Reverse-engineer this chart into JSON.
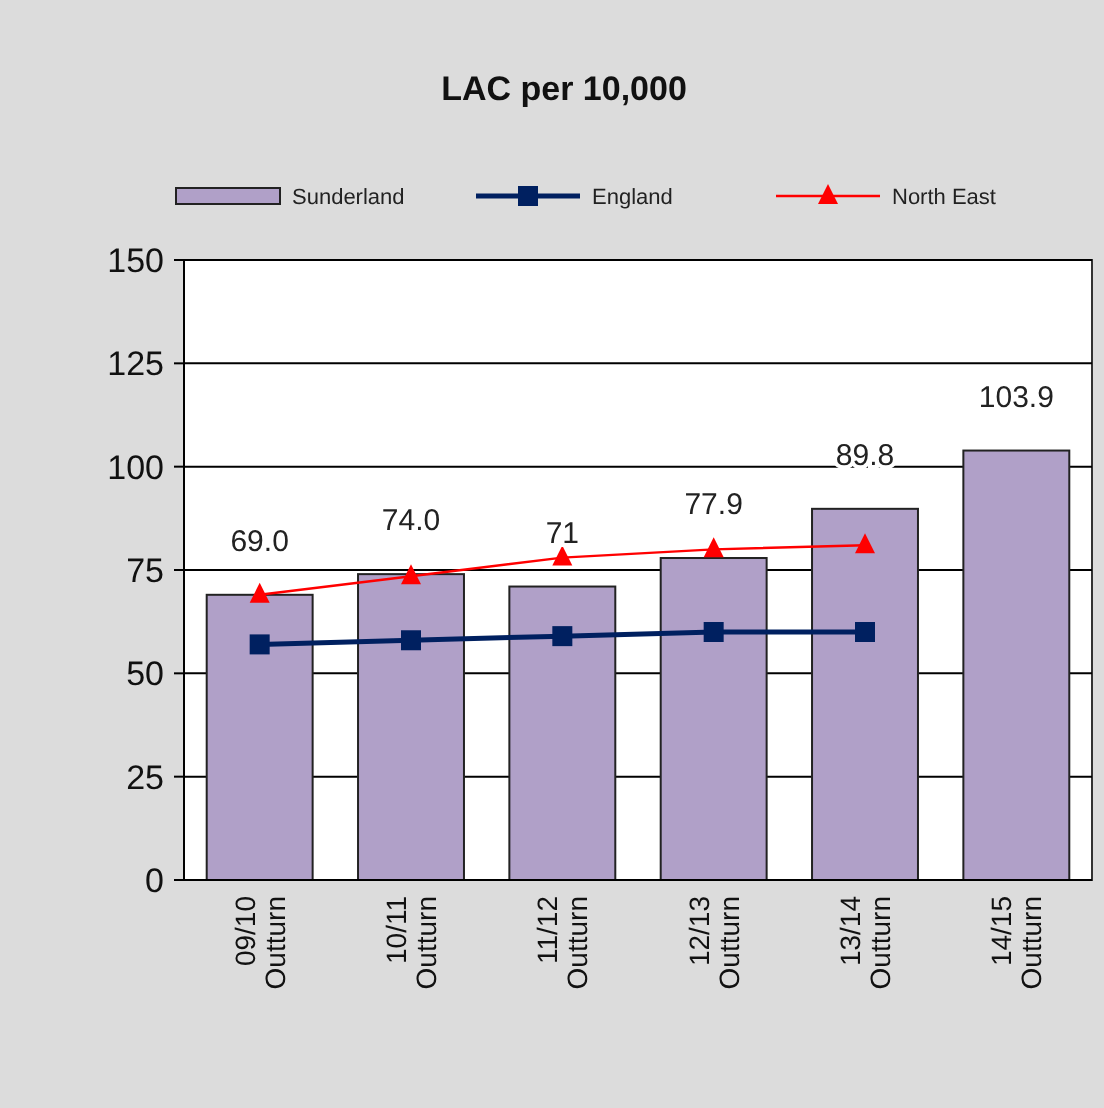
{
  "chart_data": {
    "type": "bar",
    "title": "LAC per 10,000",
    "categories": [
      "09/10 Outturn",
      "10/11 Outturn",
      "11/12 Outturn",
      "12/13 Outturn",
      "13/14 Outturn",
      "14/15 Outturn"
    ],
    "series": [
      {
        "name": "Sunderland",
        "color": "#b0a0c8",
        "values": [
          69.0,
          74.0,
          71,
          77.9,
          89.8,
          103.9
        ],
        "value_labels": [
          "69.0",
          "74.0",
          "71",
          "77.9",
          "89.8",
          "103.9"
        ]
      },
      {
        "name": "England",
        "type": "line",
        "color": "#002060",
        "marker": "square",
        "values": [
          57,
          58,
          59,
          60,
          60,
          null
        ]
      },
      {
        "name": "North East",
        "type": "line",
        "color": "#ff0000",
        "marker": "triangle",
        "values": [
          69,
          73.5,
          78,
          80,
          81,
          null
        ]
      }
    ],
    "ylim": [
      0,
      150
    ],
    "yticks": [
      0,
      25,
      50,
      75,
      100,
      125,
      150
    ],
    "grid": "y",
    "legend": "top",
    "line_style": "solid"
  }
}
